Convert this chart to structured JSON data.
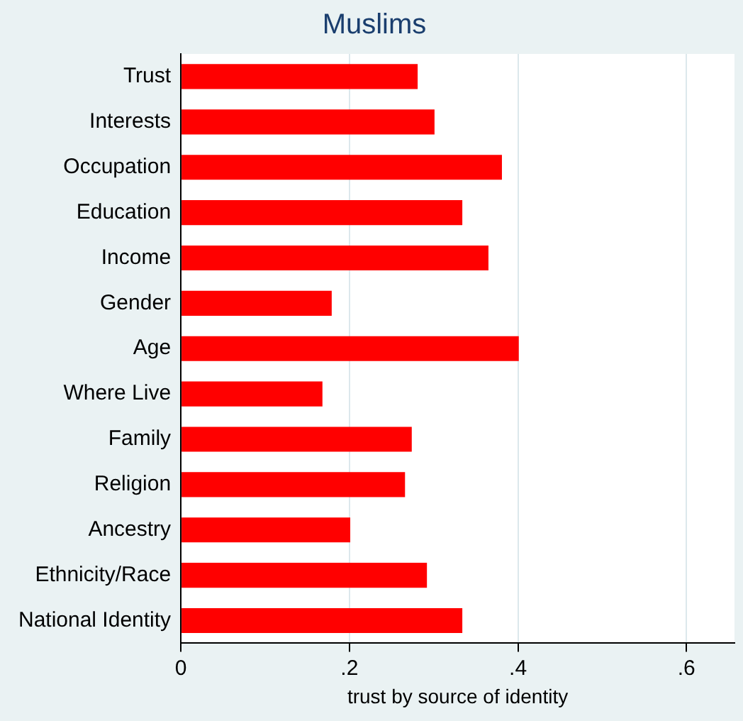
{
  "chart_data": {
    "type": "bar",
    "orientation": "horizontal",
    "title": "Muslims",
    "xlabel": "trust by source of identity",
    "categories": [
      "Trust",
      "Interests",
      "Occupation",
      "Education",
      "Income",
      "Gender",
      "Age",
      "Where Live",
      "Family",
      "Religion",
      "Ancestry",
      "Ethnicity/Race",
      "National Identity"
    ],
    "values": [
      0.281,
      0.301,
      0.381,
      0.334,
      0.365,
      0.179,
      0.401,
      0.168,
      0.274,
      0.266,
      0.201,
      0.292,
      0.334
    ],
    "color": "#ff0000",
    "xlim": [
      0,
      0.657
    ],
    "xticks": [
      {
        "value": 0,
        "label": "0"
      },
      {
        "value": 0.2,
        "label": ".2"
      },
      {
        "value": 0.4,
        "label": ".4"
      },
      {
        "value": 0.6,
        "label": ".6"
      }
    ],
    "grid": "x",
    "legend": false
  }
}
